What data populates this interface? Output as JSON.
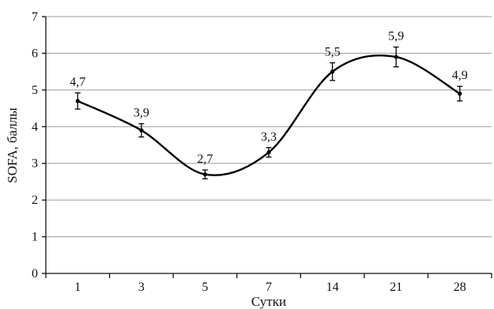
{
  "chart_data": {
    "type": "line",
    "title": "",
    "xlabel": "Сутки",
    "ylabel": "SOFA, баллы",
    "categories": [
      "1",
      "3",
      "5",
      "7",
      "14",
      "21",
      "28"
    ],
    "values": [
      4.7,
      3.9,
      2.7,
      3.3,
      5.5,
      5.9,
      4.9
    ],
    "value_labels": [
      "4,7",
      "3,9",
      "2,7",
      "3,3",
      "5,5",
      "5,9",
      "4,9"
    ],
    "error": [
      0.22,
      0.18,
      0.12,
      0.13,
      0.24,
      0.27,
      0.2
    ],
    "ylim": [
      0,
      7
    ],
    "yticks": [
      "0",
      "1",
      "2",
      "3",
      "4",
      "5",
      "6",
      "7"
    ],
    "grid": true,
    "legend": "none",
    "smooth": true,
    "line_color": "#000000",
    "grid_color": "#9a9a9a"
  }
}
